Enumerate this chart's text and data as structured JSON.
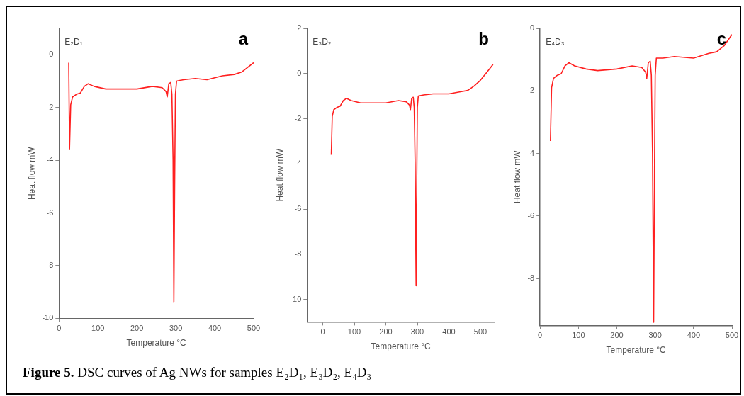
{
  "chart_data": [
    {
      "type": "line",
      "xlabel": "Temperature °C",
      "ylabel": "Heat flow mW",
      "xlim": [
        0,
        500
      ],
      "xticks": [
        0,
        100,
        200,
        300,
        400,
        500
      ],
      "ylim": [
        -10,
        1
      ],
      "yticks": [
        -10,
        -8,
        -6,
        -4,
        -2,
        0
      ],
      "grid": false,
      "legend": false,
      "marker": "none",
      "annotations": [
        "E₂D₁",
        "a",
        "Figure 5.  DSC curves of Ag NWs for samples E₂D₁, E₃D₂, E₄D₃"
      ],
      "series": [
        {
          "color": "#ff2020",
          "x": [
            25,
            27,
            30,
            35,
            45,
            55,
            65,
            75,
            90,
            120,
            150,
            200,
            240,
            265,
            275,
            278,
            282,
            287,
            290,
            293,
            295,
            297,
            299,
            302,
            320,
            350,
            380,
            420,
            450,
            470,
            500
          ],
          "values": [
            -0.3,
            -3.6,
            -1.9,
            -1.6,
            -1.5,
            -1.45,
            -1.2,
            -1.1,
            -1.2,
            -1.3,
            -1.3,
            -1.3,
            -1.2,
            -1.25,
            -1.4,
            -1.6,
            -1.1,
            -1.05,
            -1.5,
            -4,
            -9.4,
            -5,
            -1.5,
            -1.0,
            -0.95,
            -0.9,
            -0.95,
            -0.8,
            -0.75,
            -0.65,
            -0.3
          ]
        }
      ]
    },
    {
      "type": "line",
      "xlabel": "Temperature °C",
      "ylabel": "Heat flow mW",
      "xlim": [
        -50,
        545
      ],
      "xticks": [
        0,
        100,
        200,
        300,
        400,
        500
      ],
      "ylim": [
        -11,
        2
      ],
      "yticks": [
        -10,
        -8,
        -6,
        -4,
        -2,
        0,
        2
      ],
      "grid": false,
      "legend": false,
      "marker": "none",
      "annotations": [
        "E₃D₂",
        "b"
      ],
      "series": [
        {
          "color": "#ff2020",
          "x": [
            27,
            30,
            35,
            45,
            55,
            65,
            75,
            90,
            120,
            150,
            200,
            240,
            265,
            275,
            278,
            282,
            287,
            290,
            293,
            296,
            298,
            300,
            303,
            320,
            350,
            400,
            440,
            460,
            480,
            500,
            520,
            540
          ],
          "values": [
            -3.6,
            -1.9,
            -1.6,
            -1.5,
            -1.45,
            -1.2,
            -1.1,
            -1.2,
            -1.3,
            -1.3,
            -1.3,
            -1.2,
            -1.25,
            -1.4,
            -1.6,
            -1.1,
            -1.05,
            -1.5,
            -4,
            -9.4,
            -5,
            -1.5,
            -1.0,
            -0.95,
            -0.9,
            -0.9,
            -0.8,
            -0.75,
            -0.55,
            -0.3,
            0.05,
            0.4
          ]
        }
      ]
    },
    {
      "type": "line",
      "xlabel": "Temperature °C",
      "ylabel": "Heat flow mW",
      "xlim": [
        0,
        500
      ],
      "xticks": [
        0,
        100,
        200,
        300,
        400,
        500
      ],
      "ylim": [
        -9.5,
        0
      ],
      "yticks": [
        -8,
        -6,
        -4,
        -2,
        0
      ],
      "grid": false,
      "legend": false,
      "marker": "none",
      "annotations": [
        "E₄D₃",
        "c"
      ],
      "series": [
        {
          "color": "#ff2020",
          "x": [
            27,
            30,
            35,
            45,
            55,
            65,
            75,
            90,
            120,
            150,
            200,
            240,
            265,
            275,
            278,
            282,
            287,
            290,
            293,
            296,
            298,
            300,
            303,
            320,
            350,
            400,
            440,
            460,
            480,
            500
          ],
          "values": [
            -3.6,
            -1.9,
            -1.6,
            -1.5,
            -1.45,
            -1.2,
            -1.1,
            -1.2,
            -1.3,
            -1.35,
            -1.3,
            -1.2,
            -1.25,
            -1.4,
            -1.6,
            -1.1,
            -1.05,
            -1.5,
            -4,
            -9.4,
            -5,
            -1.5,
            -0.95,
            -0.95,
            -0.9,
            -0.95,
            -0.8,
            -0.75,
            -0.55,
            -0.2
          ]
        }
      ]
    }
  ]
}
